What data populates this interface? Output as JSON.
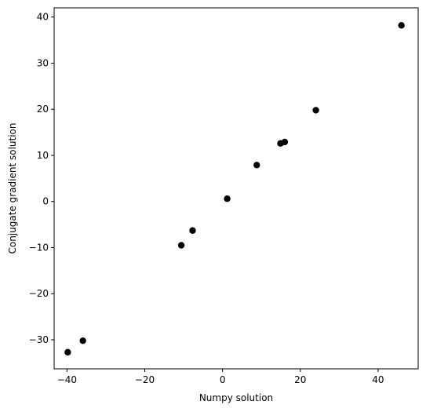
{
  "chart_data": {
    "type": "scatter",
    "title": "",
    "xlabel": "Numpy solution",
    "ylabel": "Conjugate gradient solution",
    "xlim": [
      -43.3,
      50.3
    ],
    "ylim": [
      -36.3,
      42.0
    ],
    "xticks": [
      -40,
      -20,
      0,
      20,
      40
    ],
    "yticks": [
      -30,
      -20,
      -10,
      0,
      10,
      20,
      30,
      40
    ],
    "xtick_labels": [
      "−40",
      "−20",
      "0",
      "20",
      "40"
    ],
    "ytick_labels": [
      "−30",
      "−20",
      "−10",
      "0",
      "10",
      "20",
      "30",
      "40"
    ],
    "grid": false,
    "marker_color": "#000000",
    "points": [
      {
        "x": -39.8,
        "y": -32.7
      },
      {
        "x": -35.9,
        "y": -30.2
      },
      {
        "x": -10.6,
        "y": -9.5
      },
      {
        "x": -7.7,
        "y": -6.3
      },
      {
        "x": 1.2,
        "y": 0.6
      },
      {
        "x": 8.8,
        "y": 7.9
      },
      {
        "x": 14.9,
        "y": 12.6
      },
      {
        "x": 16.0,
        "y": 12.9
      },
      {
        "x": 24.0,
        "y": 19.8
      },
      {
        "x": 46.0,
        "y": 38.2
      }
    ]
  }
}
